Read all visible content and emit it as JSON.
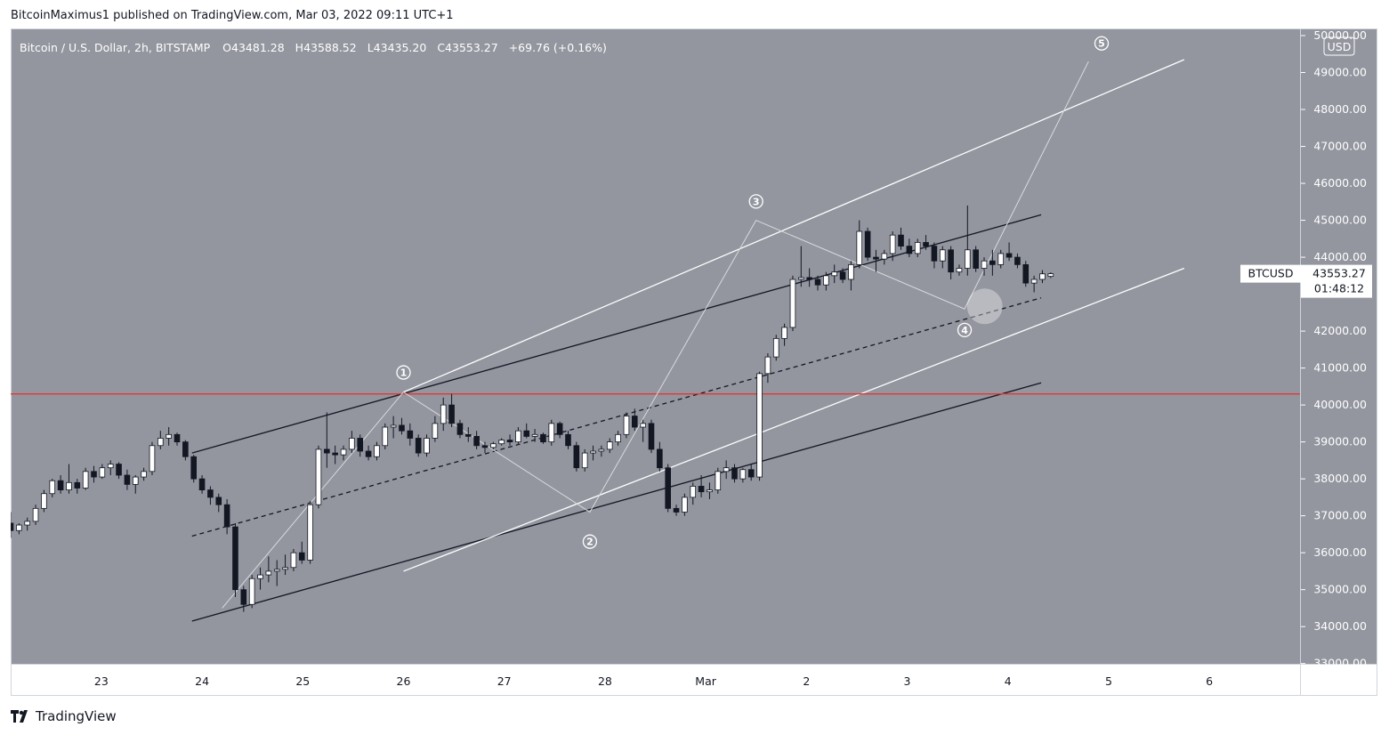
{
  "header": {
    "publisher_text": "BitcoinMaximus1 published on TradingView.com, Mar 03, 2022 09:11 UTC+1"
  },
  "footer": {
    "brand": "TradingView",
    "logo_icon": "tradingview-logo-icon"
  },
  "colors": {
    "plot_bg": "#93969f",
    "axis_bg": "#93969f",
    "candle_up": "#ffffff",
    "candle_down": "#131722",
    "channel_dark": "#131722",
    "channel_white": "#ffffff",
    "support_line": "#e53935",
    "wave_path": "#d9dadd"
  },
  "chart_data": {
    "type": "candlestick",
    "symbol_title": "Bitcoin / U.S. Dollar, 2h, BITSTAMP",
    "ohlc_legend": {
      "o_label": "O",
      "o_value": "43481.28",
      "h_label": "H",
      "h_value": "43588.52",
      "l_label": "L",
      "l_value": "43435.20",
      "c_label": "C",
      "c_value": "43553.27",
      "change": "+69.76 (+0.16%)"
    },
    "currency_label": "USD",
    "price_label": {
      "symbol": "BTCUSD",
      "price": "43553.27",
      "countdown": "01:48:12"
    },
    "y_axis": {
      "min": 32800,
      "max": 50000,
      "ticks": [
        50000,
        49000,
        48000,
        47000,
        46000,
        45000,
        44000,
        43000,
        42000,
        41000,
        40000,
        39000,
        38000,
        37000,
        36000,
        35000,
        34000,
        33000
      ],
      "tick_labels": [
        "50000.00",
        "49000.00",
        "48000.00",
        "47000.00",
        "46000.00",
        "45000.00",
        "44000.00",
        "43000.00",
        "42000.00",
        "41000.00",
        "40000.00",
        "39000.00",
        "38000.00",
        "37000.00",
        "36000.00",
        "35000.00",
        "34000.00",
        "33000.00"
      ]
    },
    "x_axis": {
      "min": 22.1,
      "max": 6.9,
      "ticks": [
        {
          "t": 23,
          "label": "23"
        },
        {
          "t": 24,
          "label": "24"
        },
        {
          "t": 25,
          "label": "25"
        },
        {
          "t": 26,
          "label": "26"
        },
        {
          "t": 27,
          "label": "27"
        },
        {
          "t": 28,
          "label": "28"
        },
        {
          "t": 29,
          "label": "Mar"
        },
        {
          "t": 30,
          "label": "2"
        },
        {
          "t": 31,
          "label": "3"
        },
        {
          "t": 32,
          "label": "4"
        },
        {
          "t": 33,
          "label": "5"
        },
        {
          "t": 34,
          "label": "6"
        }
      ]
    },
    "candles": [
      [
        36800,
        37100,
        36400,
        36600
      ],
      [
        36600,
        36800,
        36500,
        36750
      ],
      [
        36750,
        36950,
        36600,
        36850
      ],
      [
        36850,
        37300,
        36750,
        37200
      ],
      [
        37200,
        37700,
        37100,
        37600
      ],
      [
        37600,
        38000,
        37500,
        37950
      ],
      [
        37950,
        38100,
        37600,
        37700
      ],
      [
        37700,
        38400,
        37600,
        37900
      ],
      [
        37900,
        38000,
        37600,
        37750
      ],
      [
        37750,
        38300,
        37700,
        38200
      ],
      [
        38200,
        38350,
        37900,
        38050
      ],
      [
        38050,
        38400,
        38000,
        38300
      ],
      [
        38300,
        38500,
        38100,
        38400
      ],
      [
        38400,
        38450,
        38000,
        38100
      ],
      [
        38100,
        38250,
        37700,
        37850
      ],
      [
        37850,
        38100,
        37600,
        38050
      ],
      [
        38050,
        38300,
        37950,
        38200
      ],
      [
        38200,
        39000,
        38100,
        38900
      ],
      [
        38900,
        39300,
        38800,
        39100
      ],
      [
        39100,
        39400,
        38900,
        39200
      ],
      [
        39200,
        39250,
        38900,
        39000
      ],
      [
        39000,
        39050,
        38500,
        38600
      ],
      [
        38600,
        38650,
        37900,
        38000
      ],
      [
        38000,
        38100,
        37600,
        37700
      ],
      [
        37700,
        37800,
        37300,
        37500
      ],
      [
        37500,
        37600,
        37100,
        37300
      ],
      [
        37300,
        37450,
        36500,
        36700
      ],
      [
        36700,
        36800,
        34800,
        35000
      ],
      [
        35000,
        35100,
        34400,
        34600
      ],
      [
        34600,
        35400,
        34500,
        35300
      ],
      [
        35300,
        35600,
        35000,
        35400
      ],
      [
        35400,
        35900,
        35200,
        35500
      ],
      [
        35500,
        35800,
        35100,
        35550
      ],
      [
        35550,
        35950,
        35400,
        35600
      ],
      [
        35600,
        36100,
        35500,
        36000
      ],
      [
        36000,
        36300,
        35700,
        35800
      ],
      [
        35800,
        37400,
        35700,
        37300
      ],
      [
        37300,
        38900,
        37200,
        38800
      ],
      [
        38800,
        39800,
        38300,
        38700
      ],
      [
        38700,
        38900,
        38400,
        38650
      ],
      [
        38650,
        38900,
        38500,
        38800
      ],
      [
        38800,
        39300,
        38700,
        39100
      ],
      [
        39100,
        39200,
        38600,
        38750
      ],
      [
        38750,
        38900,
        38500,
        38600
      ],
      [
        38600,
        39000,
        38500,
        38900
      ],
      [
        38900,
        39500,
        38800,
        39400
      ],
      [
        39400,
        39700,
        39100,
        39450
      ],
      [
        39450,
        39650,
        39200,
        39300
      ],
      [
        39300,
        39500,
        38900,
        39100
      ],
      [
        39100,
        39200,
        38600,
        38700
      ],
      [
        38700,
        39200,
        38600,
        39100
      ],
      [
        39100,
        39700,
        39000,
        39500
      ],
      [
        39500,
        40200,
        39300,
        40000
      ],
      [
        40000,
        40300,
        39400,
        39500
      ],
      [
        39500,
        39600,
        39100,
        39200
      ],
      [
        39200,
        39400,
        39000,
        39150
      ],
      [
        39150,
        39300,
        38800,
        38900
      ],
      [
        38900,
        39000,
        38700,
        38850
      ],
      [
        38850,
        39000,
        38800,
        38950
      ],
      [
        38950,
        39100,
        38900,
        39050
      ],
      [
        39050,
        39200,
        38900,
        39000
      ],
      [
        39000,
        39400,
        38950,
        39300
      ],
      [
        39300,
        39500,
        39100,
        39150
      ],
      [
        39150,
        39350,
        39000,
        39200
      ],
      [
        39200,
        39250,
        38950,
        39000
      ],
      [
        39000,
        39600,
        38900,
        39500
      ],
      [
        39500,
        39550,
        39100,
        39200
      ],
      [
        39200,
        39300,
        38800,
        38900
      ],
      [
        38900,
        39000,
        38200,
        38300
      ],
      [
        38300,
        38800,
        38200,
        38700
      ],
      [
        38700,
        38900,
        38500,
        38750
      ],
      [
        38750,
        38900,
        38600,
        38800
      ],
      [
        38800,
        39100,
        38700,
        39000
      ],
      [
        39000,
        39300,
        38900,
        39200
      ],
      [
        39200,
        39800,
        39100,
        39700
      ],
      [
        39700,
        39900,
        39300,
        39400
      ],
      [
        39400,
        39600,
        39000,
        39500
      ],
      [
        39500,
        39600,
        38700,
        38800
      ],
      [
        38800,
        39000,
        38200,
        38300
      ],
      [
        38300,
        38400,
        37100,
        37200
      ],
      [
        37200,
        37300,
        37000,
        37100
      ],
      [
        37100,
        37600,
        37000,
        37500
      ],
      [
        37500,
        37900,
        37300,
        37800
      ],
      [
        37800,
        38100,
        37500,
        37650
      ],
      [
        37650,
        37900,
        37450,
        37700
      ],
      [
        37700,
        38300,
        37600,
        38200
      ],
      [
        38200,
        38500,
        38000,
        38300
      ],
      [
        38300,
        38400,
        37900,
        38000
      ],
      [
        38000,
        38300,
        37900,
        38250
      ],
      [
        38250,
        38400,
        37950,
        38050
      ],
      [
        38050,
        40900,
        37950,
        40850
      ],
      [
        40850,
        41400,
        40600,
        41300
      ],
      [
        41300,
        41900,
        41200,
        41800
      ],
      [
        41800,
        42200,
        41600,
        42100
      ],
      [
        42100,
        43500,
        42000,
        43400
      ],
      [
        43400,
        44300,
        43200,
        43450
      ],
      [
        43450,
        43700,
        43200,
        43400
      ],
      [
        43400,
        43500,
        43100,
        43250
      ],
      [
        43250,
        43600,
        43100,
        43500
      ],
      [
        43500,
        43800,
        43300,
        43600
      ],
      [
        43600,
        43700,
        43300,
        43400
      ],
      [
        43400,
        43900,
        43100,
        43800
      ],
      [
        43800,
        45000,
        43700,
        44700
      ],
      [
        44700,
        44800,
        43900,
        44000
      ],
      [
        44000,
        44200,
        43600,
        43950
      ],
      [
        43950,
        44200,
        43800,
        44100
      ],
      [
        44100,
        44700,
        43900,
        44600
      ],
      [
        44600,
        44800,
        44200,
        44300
      ],
      [
        44300,
        44500,
        44000,
        44100
      ],
      [
        44100,
        44500,
        44000,
        44400
      ],
      [
        44400,
        44600,
        44200,
        44300
      ],
      [
        44300,
        44400,
        43700,
        43900
      ],
      [
        43900,
        44300,
        43700,
        44200
      ],
      [
        44200,
        44300,
        43400,
        43600
      ],
      [
        43600,
        43800,
        43500,
        43700
      ],
      [
        43700,
        45400,
        43500,
        44200
      ],
      [
        44200,
        44300,
        43600,
        43700
      ],
      [
        43700,
        44000,
        43500,
        43900
      ],
      [
        43900,
        44200,
        43500,
        43800
      ],
      [
        43800,
        44200,
        43700,
        44100
      ],
      [
        44100,
        44400,
        43900,
        44000
      ],
      [
        44000,
        44100,
        43700,
        43800
      ],
      [
        43800,
        43900,
        43200,
        43300
      ],
      [
        43300,
        43500,
        43050,
        43400
      ],
      [
        43400,
        43650,
        43300,
        43550
      ],
      [
        43481,
        43588,
        43435,
        43553
      ]
    ],
    "candle_step_days": 0.0826,
    "candle_start_day": 22.1,
    "channels": [
      {
        "name": "dark-upper",
        "color": "dark",
        "p1": [
          23.9,
          38700
        ],
        "p2": [
          32.33,
          45150
        ]
      },
      {
        "name": "dark-lower",
        "color": "dark",
        "p1": [
          23.9,
          34150
        ],
        "p2": [
          32.33,
          40600
        ]
      },
      {
        "name": "dark-mid",
        "color": "dark",
        "dashed": true,
        "p1": [
          23.9,
          36450
        ],
        "p2": [
          32.33,
          42900
        ]
      },
      {
        "name": "white-upper",
        "color": "white",
        "p1": [
          26.0,
          40350
        ],
        "p2": [
          33.75,
          49350
        ]
      },
      {
        "name": "white-lower",
        "color": "white",
        "p1": [
          26.0,
          35500
        ],
        "p2": [
          33.75,
          43700
        ]
      },
      {
        "name": "support",
        "color": "red",
        "p1": [
          22.1,
          40300
        ],
        "p2": [
          34.9,
          40300
        ]
      }
    ],
    "wave_path": [
      [
        24.2,
        34500
      ],
      [
        26.0,
        40350
      ],
      [
        27.85,
        37100
      ],
      [
        29.5,
        45000
      ],
      [
        31.57,
        42600
      ],
      [
        32.8,
        49300
      ]
    ],
    "wave_labels": [
      {
        "label": "1",
        "t": 26.0,
        "v": 40880
      },
      {
        "label": "2",
        "t": 27.85,
        "v": 36300
      },
      {
        "label": "3",
        "t": 29.5,
        "v": 45510
      },
      {
        "label": "4",
        "t": 31.57,
        "v": 42030
      },
      {
        "label": "5",
        "t": 32.93,
        "v": 49790
      }
    ],
    "target_zone": {
      "t": 31.77,
      "v": 42670
    },
    "grid": false,
    "legend": "top-left"
  }
}
